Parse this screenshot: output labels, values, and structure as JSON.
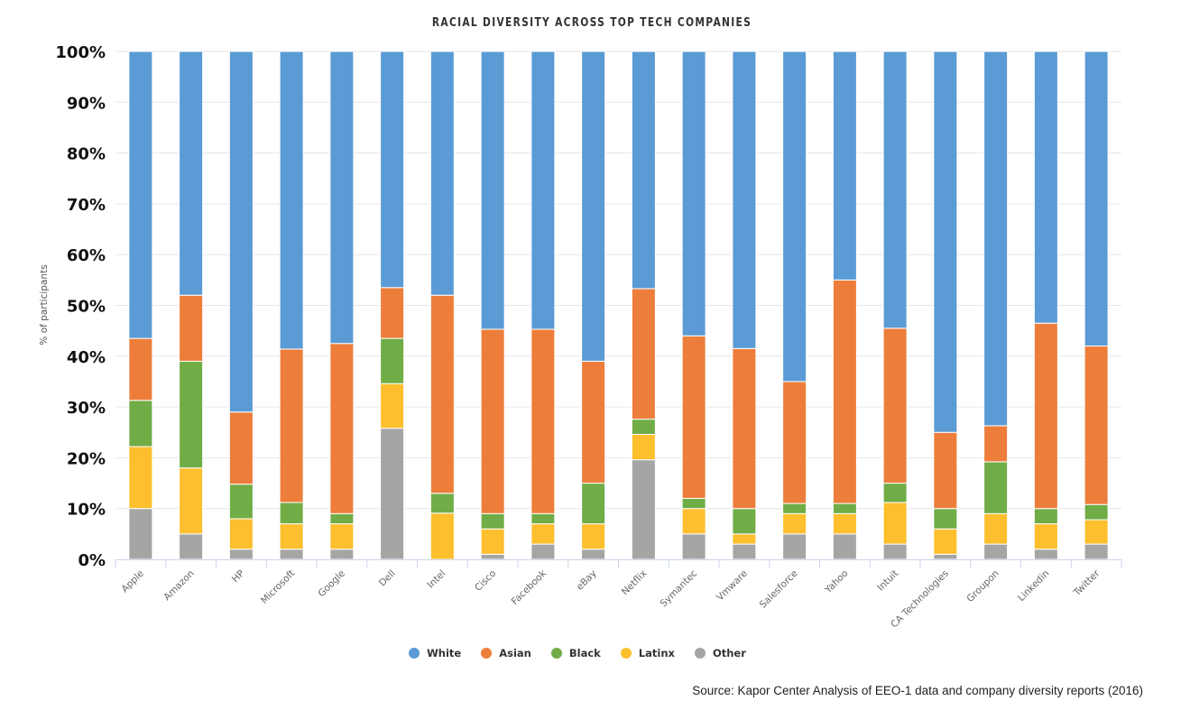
{
  "chart_data": {
    "type": "bar",
    "stacked": true,
    "title": "RACIAL DIVERSITY ACROSS TOP TECH COMPANIES",
    "xlabel": "",
    "ylabel": "% of participants",
    "ylim": [
      0,
      100
    ],
    "yticks": [
      "0%",
      "10%",
      "20%",
      "30%",
      "40%",
      "50%",
      "60%",
      "70%",
      "80%",
      "90%",
      "100%"
    ],
    "grid": true,
    "legend_position": "bottom-center",
    "categories": [
      "Apple",
      "Amazon",
      "HP",
      "Microsoft",
      "Google",
      "Dell",
      "Intel",
      "Cisco",
      "Facebook",
      "eBay",
      "Netflix",
      "Symantec",
      "Vmware",
      "Salesforce",
      "Yahoo",
      "Intuit",
      "CA Technologies",
      "Groupon",
      "Linkedin",
      "Twitter"
    ],
    "series": [
      {
        "name": "Other",
        "color": "#a5a5a5",
        "values": [
          10,
          5,
          2,
          2,
          2,
          25.8,
          0,
          1,
          3,
          2,
          19.6,
          5,
          3,
          5,
          5,
          3,
          1,
          3,
          2,
          3
        ]
      },
      {
        "name": "Latinx",
        "color": "#fdbf2d",
        "values": [
          12.2,
          13,
          6,
          5,
          5,
          8.8,
          9.1,
          5,
          4,
          5,
          5,
          5,
          2,
          4,
          4,
          8.2,
          5,
          6,
          5,
          4.8
        ]
      },
      {
        "name": "Black",
        "color": "#70ad47",
        "values": [
          9.1,
          21,
          6.8,
          4.2,
          2,
          8.9,
          3.9,
          3,
          2,
          8,
          3,
          2,
          5,
          2,
          2,
          3.8,
          4,
          10.2,
          3,
          3
        ]
      },
      {
        "name": "Asian",
        "color": "#ed7d3a",
        "values": [
          12.2,
          13,
          14.2,
          30.2,
          33.5,
          10,
          39,
          36.3,
          36.3,
          24,
          25.7,
          32,
          31.5,
          24,
          44,
          30.5,
          15,
          7.1,
          36.5,
          31.2
        ]
      },
      {
        "name": "White",
        "color": "#5b9bd5",
        "values": [
          56.5,
          48,
          71,
          58.6,
          57.5,
          46.5,
          48,
          54.7,
          54.7,
          61,
          46.7,
          56,
          58.5,
          65,
          45,
          54.5,
          75,
          73.7,
          53.5,
          58
        ]
      }
    ],
    "legend_order": [
      "White",
      "Asian",
      "Black",
      "Latinx",
      "Other"
    ]
  },
  "source": "Source: Kapor Center Analysis of EEO-1 data and company diversity reports (2016)"
}
